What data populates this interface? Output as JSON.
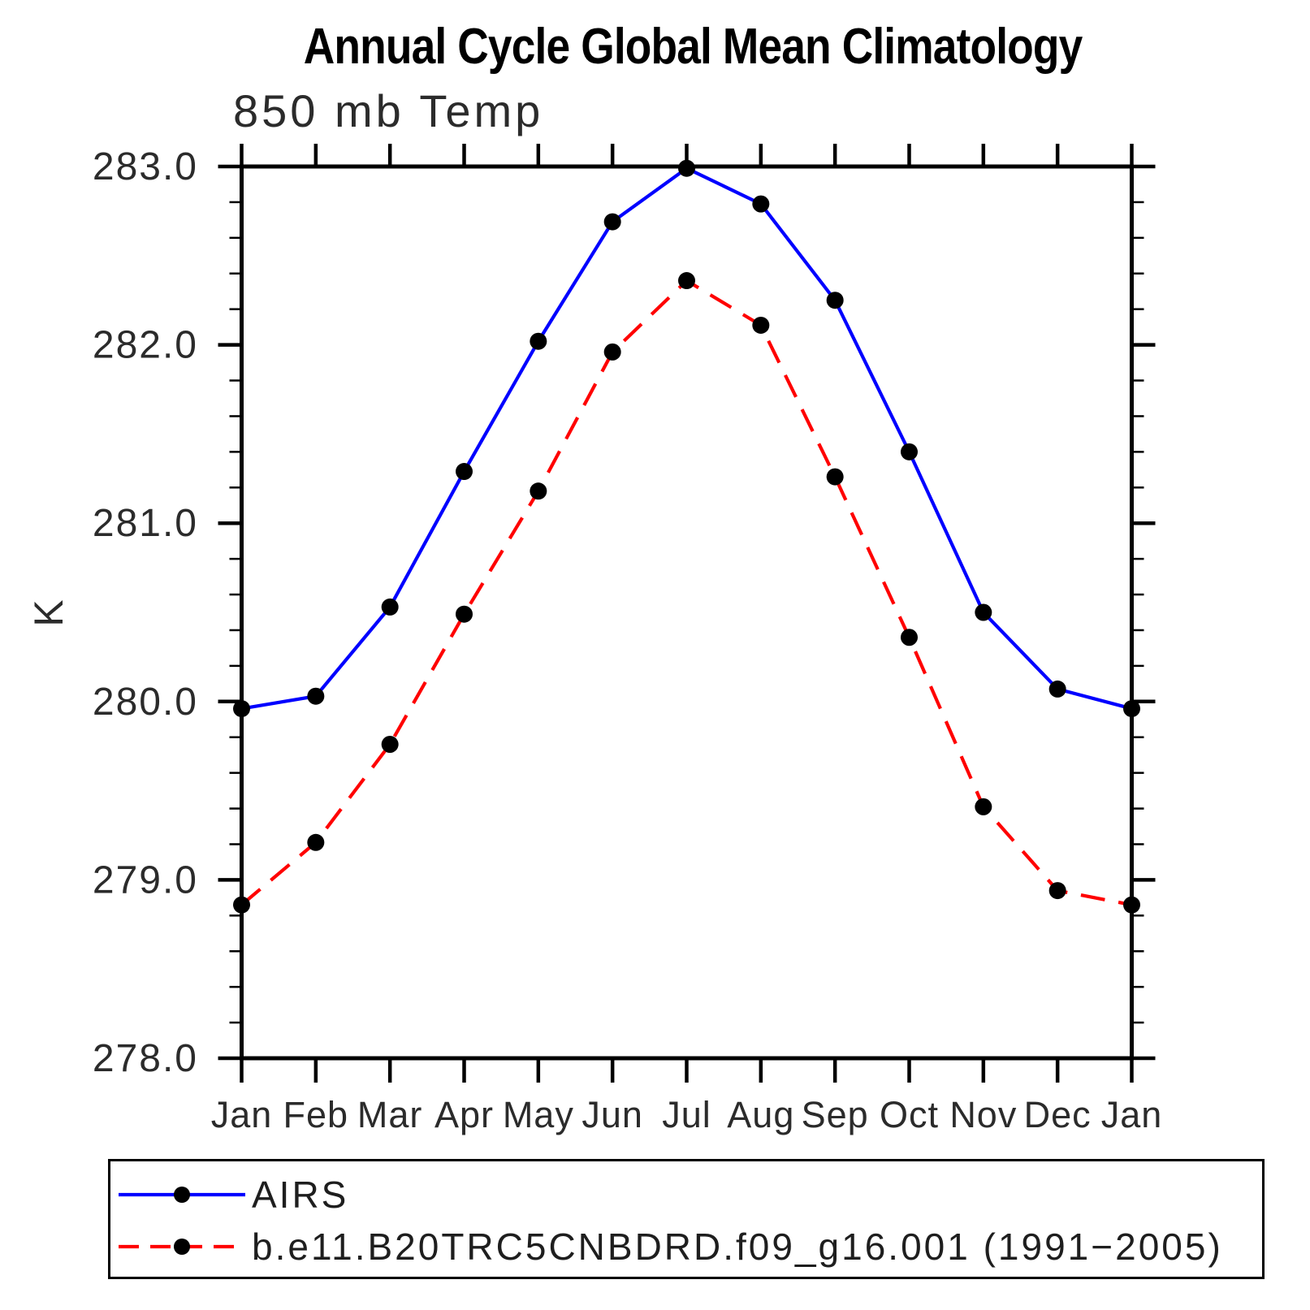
{
  "title": "Annual Cycle Global Mean Climatology",
  "subtitle": "850 mb Temp",
  "ylabel": "K",
  "chart_data": {
    "type": "line",
    "x_categories": [
      "Jan",
      "Feb",
      "Mar",
      "Apr",
      "May",
      "Jun",
      "Jul",
      "Aug",
      "Sep",
      "Oct",
      "Nov",
      "Dec",
      "Jan"
    ],
    "ylim": [
      278.0,
      283.0
    ],
    "ytick_labels": [
      "278.0",
      "279.0",
      "280.0",
      "281.0",
      "282.0",
      "283.0"
    ],
    "y_minor_step": 0.2,
    "grid": false,
    "legend_position": "bottom",
    "frame_color": "#000000",
    "marker_color": "#000000",
    "series": [
      {
        "name": "AIRS",
        "color": "#0000ff",
        "line_style": "solid",
        "marker": "circle",
        "values": [
          279.96,
          280.03,
          280.53,
          281.29,
          282.02,
          282.69,
          282.99,
          282.79,
          282.25,
          281.4,
          280.5,
          280.07,
          279.96
        ]
      },
      {
        "name": "b.e11.B20TRC5CNBDRD.f09_g16.001 (1991−2005)",
        "color": "#ff0000",
        "line_style": "dashed",
        "marker": "circle",
        "values": [
          278.86,
          279.21,
          279.76,
          280.49,
          281.18,
          281.96,
          282.36,
          282.11,
          281.26,
          280.36,
          279.41,
          278.94,
          278.86
        ]
      }
    ]
  }
}
